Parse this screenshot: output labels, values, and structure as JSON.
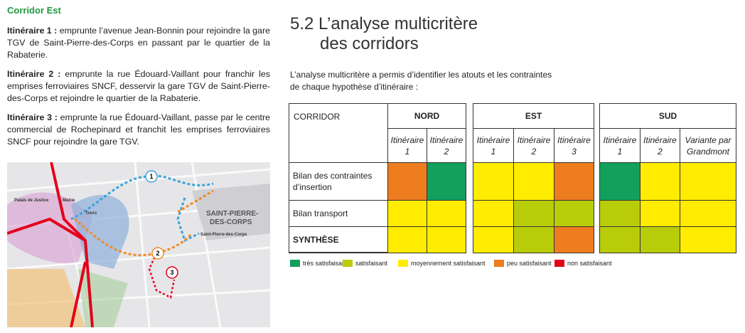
{
  "left": {
    "heading": "Corridor Est",
    "paragraphs": [
      {
        "label": "Itinéraire 1 :",
        "text": "emprunte l’avenue Jean-Bonnin pour rejoindre la gare TGV de Saint-Pierre-des-Corps en passant par le quartier de la Rabaterie."
      },
      {
        "label": "Itinéraire 2 :",
        "text": "emprunte la rue Édouard-Vaillant pour franchir les emprises ferroviaires SNCF, desservir la gare TGV de Saint-Pierre-des-Corps et rejoindre le quartier de la Rabaterie."
      },
      {
        "label": "Itinéraire 3 :",
        "text": "emprunte la rue Édouard-Vaillant, passe par le centre commercial de Rochepinard et franchit les emprises ferroviaires SNCF pour rejoindre la gare TGV."
      }
    ],
    "map": {
      "labels": [
        "Palais de Justice",
        "Mairie",
        "Tours",
        "SAINT-PIERRE-",
        "DES-CORPS",
        "Saint-Pierre-des-Corps"
      ],
      "markers": [
        "1",
        "2",
        "3"
      ]
    }
  },
  "right": {
    "title": [
      "5.2 L’analyse multicritère",
      "des corridors"
    ],
    "intro": [
      "L’analyse multicritère a permis d’identifier les atouts et les contraintes",
      "de chaque hypothèse d’itinéraire :"
    ],
    "table": {
      "corner": "CORRIDOR",
      "groups": [
        {
          "name": "NORD",
          "columns": [
            [
              "Itinéraire",
              "1"
            ],
            [
              "Itinéraire",
              "2"
            ]
          ]
        },
        {
          "name": "EST",
          "columns": [
            [
              "Itinéraire",
              "1"
            ],
            [
              "Itinéraire",
              "2"
            ],
            [
              "Itinéraire",
              "3"
            ]
          ]
        },
        {
          "name": "SUD",
          "columns": [
            [
              "Itinéraire",
              "1"
            ],
            [
              "Itinéraire",
              "2"
            ],
            [
              "Variante par",
              "Grandmont"
            ]
          ]
        }
      ],
      "rows": [
        {
          "label": [
            "Bilan des contraintes",
            "d’insertion"
          ],
          "cells": [
            "#ed7d1e",
            "#12a05c",
            "#ffec00",
            "#ffec00",
            "#ed7d1e",
            "#12a05c",
            "#ffec00",
            "#ffec00"
          ]
        },
        {
          "label": [
            "Bilan transport"
          ],
          "cells": [
            "#ffec00",
            "#ffec00",
            "#ffec00",
            "#b9cc0a",
            "#b9cc0a",
            "#b9cc0a",
            "#ffec00",
            "#ffec00"
          ]
        },
        {
          "label": [
            "SYNTHÈSE"
          ],
          "cells": [
            "#ffec00",
            "#ffec00",
            "#ffec00",
            "#b9cc0a",
            "#ed7d1e",
            "#b9cc0a",
            "#b9cc0a",
            "#ffec00"
          ]
        }
      ]
    },
    "legend": [
      {
        "label": "très satisfaisant",
        "color": "#12a05c"
      },
      {
        "label": "satisfaisant",
        "color": "#b9cc0a"
      },
      {
        "label": "moyennement satisfaisant",
        "color": "#ffec00"
      },
      {
        "label": "peu satisfaisant",
        "color": "#ed7d1e"
      },
      {
        "label": "non satisfaisant",
        "color": "#e3001b"
      }
    ]
  }
}
